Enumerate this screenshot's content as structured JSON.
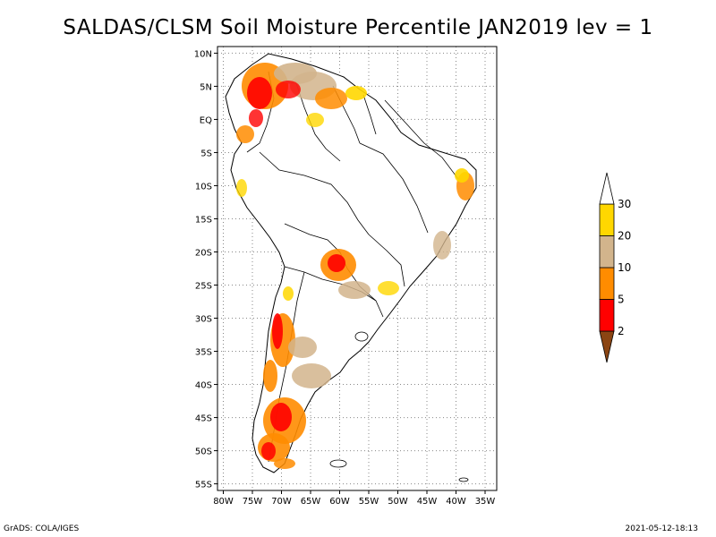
{
  "title": "SALDAS/CLSM Soil Moisture Percentile JAN2019 lev = 1",
  "map": {
    "lat_labels": [
      "10N",
      "5N",
      "EQ",
      "5S",
      "10S",
      "15S",
      "20S",
      "25S",
      "30S",
      "35S",
      "40S",
      "45S",
      "50S",
      "55S"
    ],
    "lon_labels": [
      "80W",
      "75W",
      "70W",
      "65W",
      "60W",
      "55W",
      "50W",
      "45W",
      "40W",
      "35W"
    ],
    "lat_values": [
      10,
      5,
      0,
      -5,
      -10,
      -15,
      -20,
      -25,
      -30,
      -35,
      -40,
      -45,
      -50,
      -55
    ],
    "lon_values": [
      -80,
      -75,
      -70,
      -65,
      -60,
      -55,
      -50,
      -45,
      -40,
      -35
    ],
    "lat_range": [
      -56,
      11
    ],
    "lon_range": [
      -81,
      -33
    ],
    "grid": "dotted",
    "region": "South America"
  },
  "colorbar": {
    "labels": [
      "2",
      "5",
      "10",
      "20",
      "30"
    ],
    "colors": [
      "#8b4513",
      "#ff0000",
      "#ff8c00",
      "#d2b48c",
      "#ffd700",
      "#ffffff"
    ]
  },
  "footer": {
    "left": "GrADS: COLA/IGES",
    "right": "2021-05-12-18:13"
  }
}
